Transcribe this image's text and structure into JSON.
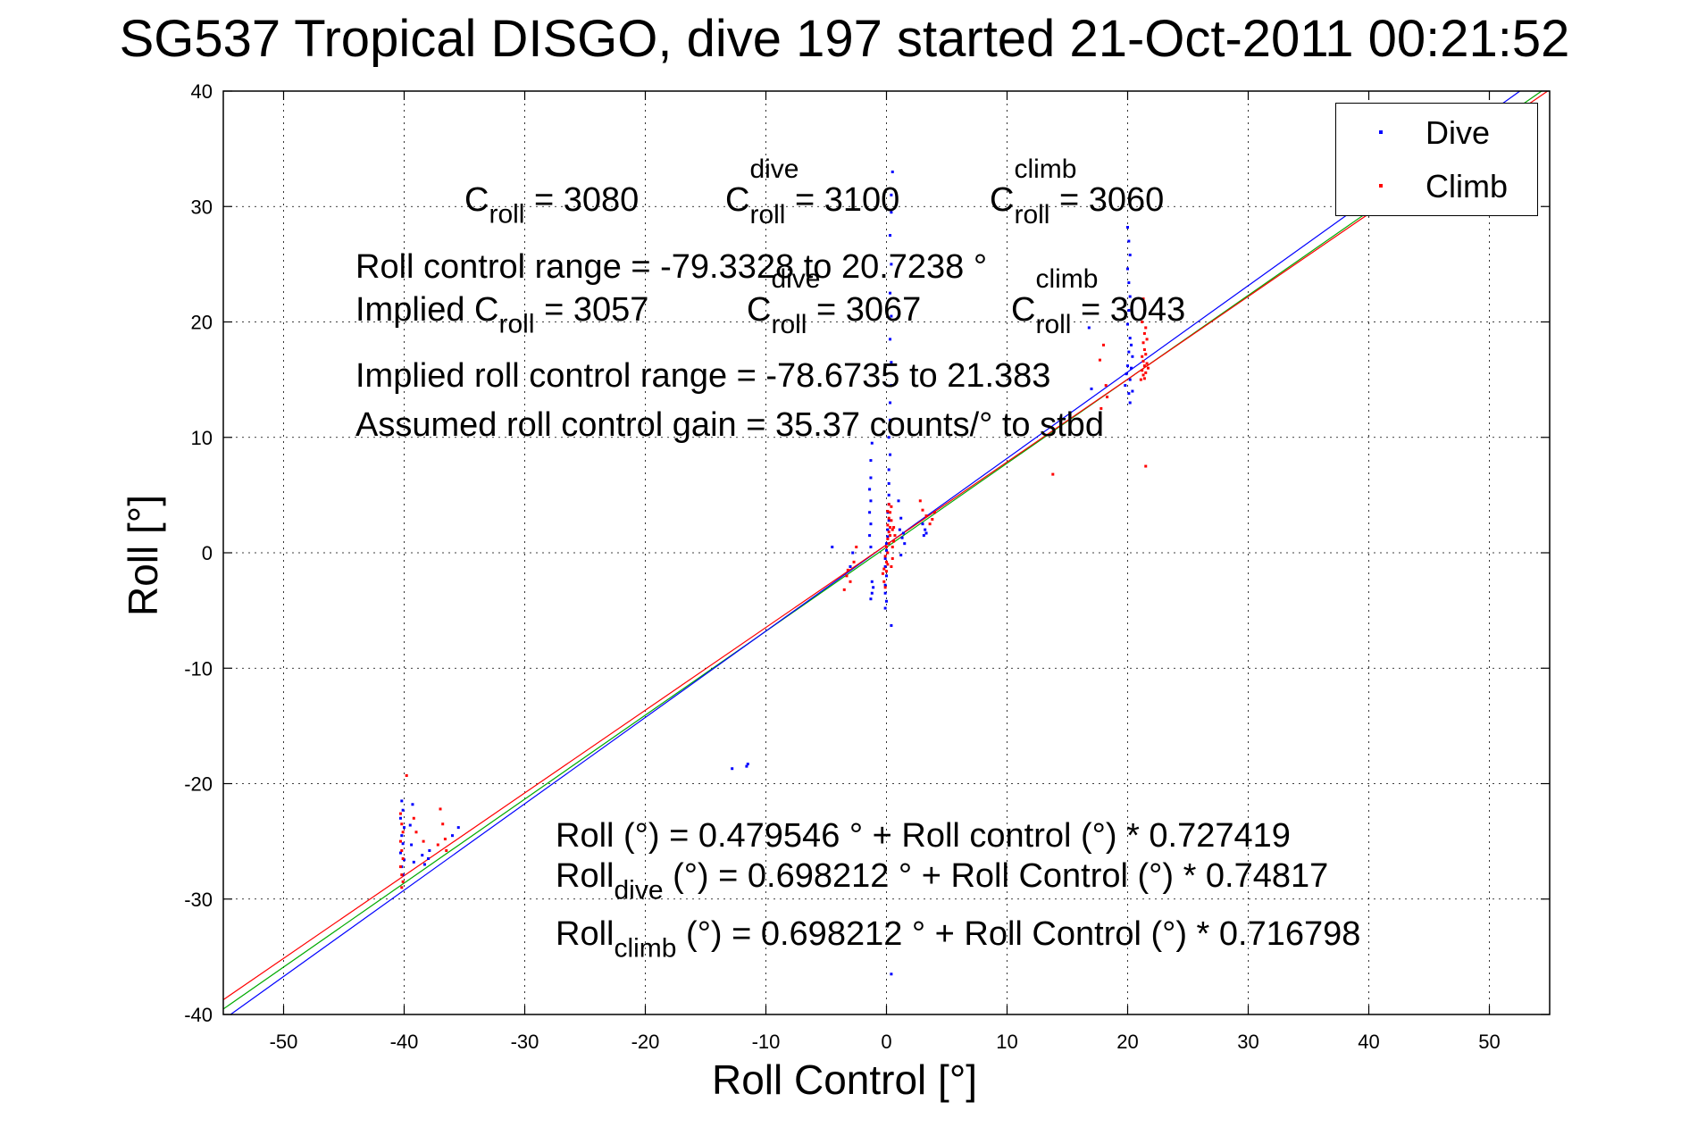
{
  "title": "SG537 Tropical DISGO, dive 197 started 21-Oct-2011 00:21:52",
  "chart_data": {
    "type": "scatter",
    "xlabel": "Roll Control [°]",
    "ylabel": "Roll [°]",
    "xlim": [
      -55,
      55
    ],
    "ylim": [
      -40,
      40
    ],
    "xticks": [
      -50,
      -40,
      -30,
      -20,
      -10,
      0,
      10,
      20,
      30,
      40,
      50
    ],
    "yticks": [
      -40,
      -30,
      -20,
      -10,
      0,
      10,
      20,
      30,
      40
    ],
    "grid": true,
    "legend_position": "top-right",
    "legend": [
      {
        "label": "Dive",
        "color": "#0000ff"
      },
      {
        "label": "Climb",
        "color": "#ff0000"
      }
    ],
    "series": [
      {
        "name": "Dive",
        "color": "#0000ff",
        "points": [
          [
            -40.2,
            -21.5
          ],
          [
            -40.1,
            -22.3
          ],
          [
            -40.3,
            -23.0
          ],
          [
            -40.0,
            -23.8
          ],
          [
            -40.2,
            -24.5
          ],
          [
            -40.1,
            -25.2
          ],
          [
            -40.3,
            -26.0
          ],
          [
            -40.0,
            -26.6
          ],
          [
            -40.2,
            -27.2
          ],
          [
            -40.1,
            -27.9
          ],
          [
            -39.3,
            -21.8
          ],
          [
            -39.5,
            -23.6
          ],
          [
            -39.4,
            -25.3
          ],
          [
            -39.2,
            -26.8
          ],
          [
            -38.5,
            -26.2
          ],
          [
            -38.3,
            -27.0
          ],
          [
            -38.0,
            -26.5
          ],
          [
            -37.9,
            -25.8
          ],
          [
            -36.0,
            -24.5
          ],
          [
            -35.5,
            -23.8
          ],
          [
            -12.8,
            -18.7
          ],
          [
            -11.6,
            -18.5
          ],
          [
            -11.5,
            -18.3
          ],
          [
            0.5,
            33.0
          ],
          [
            0.4,
            31.0
          ],
          [
            0.4,
            29.5
          ],
          [
            0.3,
            27.5
          ],
          [
            0.4,
            25.0
          ],
          [
            0.3,
            22.5
          ],
          [
            0.4,
            20.5
          ],
          [
            0.3,
            18.5
          ],
          [
            0.4,
            16.5
          ],
          [
            0.4,
            14.5
          ],
          [
            0.3,
            13.0
          ],
          [
            0.3,
            11.5
          ],
          [
            0.2,
            10.0
          ],
          [
            0.3,
            8.5
          ],
          [
            0.2,
            7.2
          ],
          [
            0.2,
            6.0
          ],
          [
            0.2,
            5.0
          ],
          [
            0.2,
            4.2
          ],
          [
            0.1,
            3.5
          ],
          [
            0.2,
            2.8
          ],
          [
            0.1,
            2.0
          ],
          [
            0.1,
            1.4
          ],
          [
            0.0,
            0.8
          ],
          [
            0.0,
            0.2
          ],
          [
            -0.1,
            -0.5
          ],
          [
            -0.1,
            -1.2
          ],
          [
            0.0,
            -2.0
          ],
          [
            -0.1,
            -2.8
          ],
          [
            -0.1,
            -3.5
          ],
          [
            0.0,
            -4.2
          ],
          [
            -0.1,
            -4.8
          ],
          [
            0.4,
            -6.3
          ],
          [
            -1.2,
            9.5
          ],
          [
            -1.3,
            8.0
          ],
          [
            -1.3,
            6.5
          ],
          [
            -1.4,
            5.5
          ],
          [
            -1.3,
            4.5
          ],
          [
            -1.4,
            3.5
          ],
          [
            -1.3,
            2.5
          ],
          [
            -1.4,
            1.5
          ],
          [
            -1.3,
            0.5
          ],
          [
            -1.2,
            -2.5
          ],
          [
            -1.1,
            -3.0
          ],
          [
            -1.2,
            -3.5
          ],
          [
            -1.3,
            -4.0
          ],
          [
            1.0,
            4.5
          ],
          [
            1.2,
            3.0
          ],
          [
            1.1,
            2.0
          ],
          [
            1.3,
            1.3
          ],
          [
            1.5,
            0.8
          ],
          [
            1.2,
            -0.2
          ],
          [
            1.4,
            1.7
          ],
          [
            3.0,
            2.5
          ],
          [
            3.1,
            1.5
          ],
          [
            3.3,
            1.7
          ],
          [
            3.2,
            2.0
          ],
          [
            -4.5,
            0.5
          ],
          [
            -3.0,
            -1.2
          ],
          [
            -2.8,
            0.0
          ],
          [
            20.0,
            28.2
          ],
          [
            20.1,
            27.0
          ],
          [
            20.2,
            25.8
          ],
          [
            20.0,
            24.6
          ],
          [
            20.1,
            23.4
          ],
          [
            20.2,
            22.2
          ],
          [
            20.1,
            21.0
          ],
          [
            20.0,
            19.8
          ],
          [
            20.2,
            18.6
          ],
          [
            20.1,
            17.4
          ],
          [
            20.0,
            16.2
          ],
          [
            20.2,
            15.0
          ],
          [
            20.1,
            13.8
          ],
          [
            20.2,
            13.0
          ],
          [
            20.3,
            16.0
          ],
          [
            20.4,
            17.0
          ],
          [
            20.3,
            18.0
          ],
          [
            20.4,
            14.0
          ],
          [
            19.8,
            14.5
          ],
          [
            19.9,
            15.5
          ],
          [
            16.8,
            19.5
          ],
          [
            17.0,
            14.2
          ],
          [
            0.4,
            -36.5
          ]
        ]
      },
      {
        "name": "Climb",
        "color": "#ff0000",
        "points": [
          [
            -40.3,
            -22.6
          ],
          [
            -40.2,
            -23.5
          ],
          [
            -40.1,
            -24.2
          ],
          [
            -40.3,
            -25.0
          ],
          [
            -40.2,
            -25.8
          ],
          [
            -40.1,
            -26.5
          ],
          [
            -40.3,
            -27.2
          ],
          [
            -40.2,
            -27.9
          ],
          [
            -40.1,
            -28.5
          ],
          [
            -40.2,
            -29.0
          ],
          [
            -39.8,
            -19.3
          ],
          [
            -39.2,
            -23.0
          ],
          [
            -39.0,
            -24.2
          ],
          [
            -38.4,
            -25.0
          ],
          [
            -37.0,
            -22.2
          ],
          [
            -36.8,
            -23.5
          ],
          [
            -36.6,
            -24.8
          ],
          [
            -37.2,
            -25.3
          ],
          [
            -36.5,
            -25.8
          ],
          [
            0.0,
            0.5
          ],
          [
            -0.1,
            -0.3
          ],
          [
            0.1,
            -1.0
          ],
          [
            0.0,
            -1.6
          ],
          [
            0.1,
            1.2
          ],
          [
            0.2,
            1.8
          ],
          [
            0.1,
            2.4
          ],
          [
            0.2,
            3.0
          ],
          [
            0.1,
            3.6
          ],
          [
            0.2,
            4.2
          ],
          [
            0.0,
            -0.8
          ],
          [
            -0.2,
            -1.4
          ],
          [
            0.1,
            0.0
          ],
          [
            0.2,
            0.8
          ],
          [
            0.3,
            1.5
          ],
          [
            0.3,
            2.2
          ],
          [
            0.4,
            2.8
          ],
          [
            0.3,
            3.5
          ],
          [
            0.4,
            4.0
          ],
          [
            0.5,
            2.0
          ],
          [
            -0.2,
            -2.5
          ],
          [
            -0.3,
            -1.8
          ],
          [
            -0.1,
            -3.0
          ],
          [
            0.5,
            0.5
          ],
          [
            0.6,
            1.0
          ],
          [
            0.7,
            1.5
          ],
          [
            0.6,
            2.2
          ],
          [
            0.5,
            -0.5
          ],
          [
            0.4,
            -1.2
          ],
          [
            -3.5,
            -3.2
          ],
          [
            -3.0,
            -2.5
          ],
          [
            -3.2,
            -1.5
          ],
          [
            -2.7,
            -0.8
          ],
          [
            -2.5,
            0.5
          ],
          [
            -3.3,
            -2.0
          ],
          [
            2.8,
            4.5
          ],
          [
            3.0,
            3.7
          ],
          [
            3.3,
            3.2
          ],
          [
            3.6,
            2.5
          ],
          [
            3.8,
            2.9
          ],
          [
            4.0,
            3.5
          ],
          [
            21.3,
            22.0
          ],
          [
            21.4,
            21.0
          ],
          [
            21.2,
            20.0
          ],
          [
            21.4,
            19.0
          ],
          [
            21.3,
            18.2
          ],
          [
            21.4,
            17.6
          ],
          [
            21.2,
            17.0
          ],
          [
            21.3,
            16.6
          ],
          [
            21.4,
            16.2
          ],
          [
            21.2,
            15.8
          ],
          [
            21.3,
            15.4
          ],
          [
            21.4,
            15.1
          ],
          [
            21.5,
            15.6
          ],
          [
            21.6,
            16.4
          ],
          [
            21.5,
            17.2
          ],
          [
            21.6,
            18.5
          ],
          [
            21.5,
            19.5
          ],
          [
            21.1,
            15.0
          ],
          [
            21.7,
            16.0
          ],
          [
            21.5,
            7.5
          ],
          [
            18.0,
            18.0
          ],
          [
            17.7,
            16.7
          ],
          [
            18.2,
            14.5
          ],
          [
            18.3,
            13.5
          ],
          [
            17.8,
            12.5
          ],
          [
            13.8,
            6.8
          ]
        ]
      }
    ],
    "fit_lines": [
      {
        "intercept": 0.479546,
        "slope": 0.727419,
        "color": "#00aa00"
      },
      {
        "intercept": 0.698212,
        "slope": 0.74817,
        "color": "#0000ff"
      },
      {
        "intercept": 0.698212,
        "slope": 0.716798,
        "color": "#ff0000"
      }
    ]
  },
  "annotations": {
    "c_roll": "C",
    "c_roll_sub": "roll",
    "c_roll_val": " = 3080",
    "c_dive": "C",
    "c_dive_sup": "dive",
    "c_dive_sub": "roll",
    "c_dive_val": " = 3100",
    "c_climb": "C",
    "c_climb_sup": "climb",
    "c_climb_sub": "roll",
    "c_climb_val": " = 3060",
    "range": "Roll control range = -79.3328 to 20.7238 °",
    "implied_c_a": "Implied C",
    "implied_c_sub": "roll",
    "implied_c_val": " = 3057",
    "implied_dive": "C",
    "implied_dive_sup": "dive",
    "implied_dive_sub": "roll",
    "implied_dive_val": " = 3067",
    "implied_climb": "C",
    "implied_climb_sup": "climb",
    "implied_climb_sub": "roll",
    "implied_climb_val": " = 3043",
    "implied_range": "Implied roll control range = -78.6735 to 21.383",
    "gain": "Assumed roll control gain = 35.37 counts/° to stbd",
    "eq1": "Roll (°) = 0.479546 ° + Roll control (°) * 0.727419",
    "eq2_a": "Roll",
    "eq2_sub": "dive",
    "eq2_b": " (°) = 0.698212 ° + Roll Control (°) * 0.74817",
    "eq3_a": "Roll",
    "eq3_sub": "climb",
    "eq3_b": " (°) = 0.698212 ° + Roll Control (°) * 0.716798"
  }
}
